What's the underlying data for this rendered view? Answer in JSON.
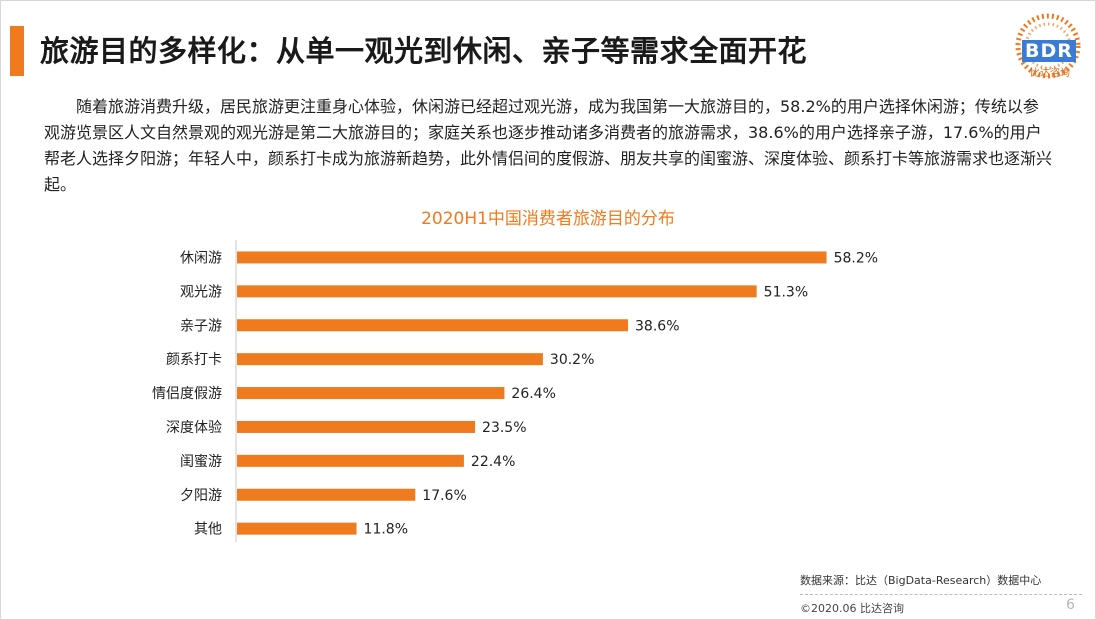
{
  "title": "旅游目的多样化：从单一观光到休闲、亲子等需求全面开花",
  "logo": {
    "text": "BDR",
    "subtitle": "比达咨询"
  },
  "paragraph": "随着旅游消费升级，居民旅游更注重身心体验，休闲游已经超过观光游，成为我国第一大旅游目的，58.2%的用户选择休闲游；传统以参观游览景区人文自然景观的观光游是第二大旅游目的；家庭关系也逐步推动诸多消费者的旅游需求，38.6%的用户选择亲子游，17.6%的用户帮老人选择夕阳游；年轻人中，颜系打卡成为旅游新趋势，此外情侣间的度假游、朋友共享的闺蜜游、深度体验、颜系打卡等旅游需求也逐渐兴起。",
  "chart_data": {
    "type": "bar",
    "orientation": "horizontal",
    "title": "2020H1中国消费者旅游目的分布",
    "categories": [
      "休闲游",
      "观光游",
      "亲子游",
      "颜系打卡",
      "情侣度假游",
      "深度体验",
      "闺蜜游",
      "夕阳游",
      "其他"
    ],
    "values": [
      58.2,
      51.3,
      38.6,
      30.2,
      26.4,
      23.5,
      22.4,
      17.6,
      11.8
    ],
    "value_labels": [
      "58.2%",
      "51.3%",
      "38.6%",
      "30.2%",
      "26.4%",
      "23.5%",
      "22.4%",
      "17.6%",
      "11.8%"
    ],
    "unit": "%",
    "xlim": [
      0,
      100
    ],
    "bar_color": "#f07a1e",
    "grid": false,
    "legend": "none"
  },
  "footer": {
    "source": "数据来源：比达（BigData-Research）数据中心",
    "copyright": "©2020.06  比达咨询",
    "page_number": "6"
  },
  "colors": {
    "accent": "#f07a1e",
    "logo_blue": "#3a7bd5"
  }
}
